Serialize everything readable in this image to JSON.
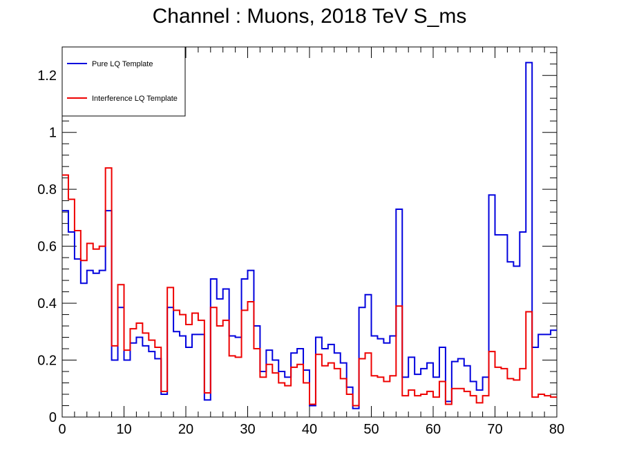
{
  "chart_data": {
    "type": "line",
    "title": "Channel : Muons, 2018 TeV S_ms",
    "xlabel": "",
    "ylabel": "",
    "xlim": [
      0,
      80
    ],
    "ylim": [
      0,
      1.3
    ],
    "x_ticks": [
      0,
      10,
      20,
      30,
      40,
      50,
      60,
      70,
      80
    ],
    "x_tick_labels": [
      "0",
      "10",
      "20",
      "30",
      "40",
      "50",
      "60",
      "70",
      "80"
    ],
    "y_ticks": [
      0,
      0.2,
      0.4,
      0.6,
      0.8,
      1,
      1.2
    ],
    "y_tick_labels": [
      "0",
      "0.2",
      "0.4",
      "0.6",
      "0.8",
      "1",
      "1.2"
    ],
    "grid": false,
    "legend_position": "top-left",
    "bin_edges_start": 0,
    "bin_width": 1,
    "series": [
      {
        "name": "Pure LQ Template",
        "color": "#0000dd",
        "values": [
          0.725,
          0.65,
          0.555,
          0.47,
          0.515,
          0.505,
          0.515,
          0.725,
          0.2,
          0.385,
          0.2,
          0.26,
          0.28,
          0.25,
          0.23,
          0.205,
          0.08,
          0.385,
          0.3,
          0.285,
          0.245,
          0.29,
          0.29,
          0.06,
          0.485,
          0.415,
          0.45,
          0.285,
          0.28,
          0.485,
          0.515,
          0.32,
          0.16,
          0.235,
          0.2,
          0.16,
          0.14,
          0.225,
          0.24,
          0.165,
          0.04,
          0.28,
          0.24,
          0.255,
          0.225,
          0.19,
          0.105,
          0.03,
          0.385,
          0.43,
          0.285,
          0.275,
          0.26,
          0.285,
          0.73,
          0.14,
          0.21,
          0.15,
          0.17,
          0.19,
          0.14,
          0.245,
          0.055,
          0.195,
          0.205,
          0.18,
          0.125,
          0.095,
          0.14,
          0.78,
          0.64,
          0.64,
          0.545,
          0.53,
          0.65,
          1.245,
          0.245,
          0.29,
          0.29,
          0.305
        ]
      },
      {
        "name": "Interference LQ Template",
        "color": "#ee0000",
        "values": [
          0.85,
          0.765,
          0.655,
          0.55,
          0.61,
          0.59,
          0.6,
          0.875,
          0.25,
          0.465,
          0.235,
          0.31,
          0.33,
          0.295,
          0.27,
          0.245,
          0.09,
          0.455,
          0.375,
          0.36,
          0.325,
          0.365,
          0.34,
          0.085,
          0.385,
          0.32,
          0.34,
          0.215,
          0.21,
          0.375,
          0.405,
          0.24,
          0.14,
          0.185,
          0.155,
          0.12,
          0.11,
          0.175,
          0.185,
          0.12,
          0.045,
          0.22,
          0.18,
          0.19,
          0.17,
          0.135,
          0.08,
          0.04,
          0.205,
          0.225,
          0.145,
          0.14,
          0.125,
          0.145,
          0.39,
          0.075,
          0.095,
          0.075,
          0.08,
          0.09,
          0.07,
          0.125,
          0.045,
          0.1,
          0.1,
          0.09,
          0.075,
          0.05,
          0.075,
          0.23,
          0.175,
          0.17,
          0.135,
          0.13,
          0.17,
          0.37,
          0.07,
          0.08,
          0.075,
          0.07
        ]
      }
    ]
  }
}
